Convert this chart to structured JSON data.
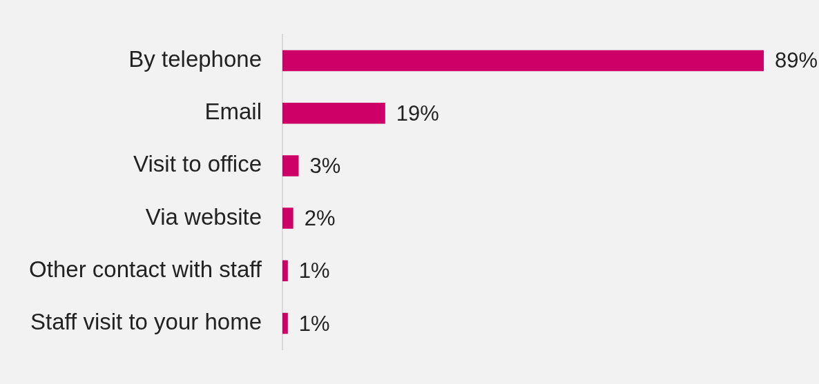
{
  "chart_data": {
    "type": "bar",
    "orientation": "horizontal",
    "categories": [
      "By telephone",
      "Email",
      "Visit to office",
      "Via website",
      "Other contact with staff",
      "Staff visit to your home"
    ],
    "values": [
      89,
      19,
      3,
      2,
      1,
      1
    ],
    "value_labels": [
      "89%",
      "19%",
      "3%",
      "2%",
      "1%",
      "1%"
    ],
    "color": "#cc0066",
    "legend": false
  }
}
